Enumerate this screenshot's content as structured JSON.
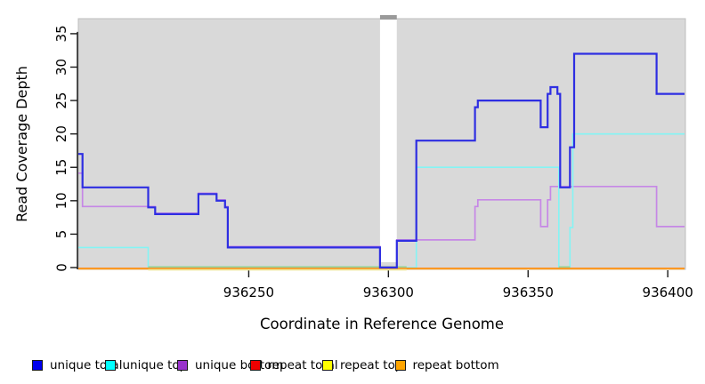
{
  "figure": {
    "bg": "#ffffff",
    "plot_bg": "#d9d9d9",
    "gap_band_color": "#ffffff",
    "gap_notch_color": "#9a9a9a",
    "axis_color": "#1a1a1a"
  },
  "chart_data": {
    "type": "line",
    "title": "",
    "xlabel": "Coordinate in Reference Genome",
    "ylabel": "Read Coverage Depth",
    "x_ticks": [
      936250,
      936300,
      936350,
      936400
    ],
    "x_tick_labels": [
      "936250",
      "936300",
      "936350",
      "936400"
    ],
    "y_ticks": [
      0,
      5,
      10,
      15,
      20,
      25,
      30,
      35
    ],
    "y_tick_labels": [
      "0",
      "5",
      "10",
      "15",
      "20",
      "25",
      "30",
      "35"
    ],
    "xlim": [
      936189,
      936406
    ],
    "ylim": [
      0,
      37.25
    ],
    "grid": false,
    "legend_position": "bottom",
    "gap_region": {
      "x_start": 936297,
      "x_end": 936303
    },
    "series": [
      {
        "name": "unique total",
        "line_color": "#2e2ee2",
        "draw": true,
        "offset_y": 0,
        "steps": [
          [
            936189,
            17
          ],
          [
            936190.5,
            12
          ],
          [
            936214,
            9
          ],
          [
            936216.5,
            8
          ],
          [
            936232,
            11
          ],
          [
            936238.5,
            10
          ],
          [
            936241.5,
            9
          ],
          [
            936242.5,
            3
          ],
          [
            936297,
            0
          ],
          [
            936303,
            4
          ],
          [
            936310,
            19
          ],
          [
            936331,
            24
          ],
          [
            936332,
            25
          ],
          [
            936354.5,
            21
          ],
          [
            936357,
            26
          ],
          [
            936358,
            27
          ],
          [
            936360.5,
            26
          ],
          [
            936361.5,
            12
          ],
          [
            936365,
            18
          ],
          [
            936366.5,
            32
          ],
          [
            936396,
            26
          ],
          [
            936406,
            26
          ]
        ]
      },
      {
        "name": "unique top",
        "line_color": "#84f4f4",
        "draw": true,
        "offset_y": 0,
        "steps": [
          [
            936189,
            3
          ],
          [
            936214,
            0
          ],
          [
            936310,
            15
          ],
          [
            936361,
            0
          ],
          [
            936365,
            6
          ],
          [
            936366,
            20
          ],
          [
            936406,
            20
          ]
        ]
      },
      {
        "name": "unique bottom",
        "line_color": "#c687e6",
        "draw": true,
        "offset_y": -1,
        "steps": [
          [
            936189,
            14
          ],
          [
            936190.5,
            9
          ],
          [
            936216.5,
            8
          ],
          [
            936232,
            11
          ],
          [
            936238.5,
            10
          ],
          [
            936241.5,
            9
          ],
          [
            936242.5,
            3
          ],
          [
            936297,
            0
          ],
          [
            936303,
            4
          ],
          [
            936331,
            9
          ],
          [
            936332,
            10
          ],
          [
            936354.5,
            6
          ],
          [
            936357,
            10
          ],
          [
            936358,
            12
          ],
          [
            936396,
            6
          ],
          [
            936406,
            6
          ]
        ]
      },
      {
        "name": "repeat total",
        "line_color": "#e00000",
        "draw": false,
        "offset_y": 0,
        "steps": [
          [
            936189,
            0
          ],
          [
            936406,
            0
          ]
        ]
      },
      {
        "name": "repeat top",
        "line_color": "#efe89c",
        "draw": false,
        "offset_y": 0,
        "steps": [
          [
            936189,
            0
          ],
          [
            936406,
            0
          ]
        ]
      },
      {
        "name": "repeat bottom",
        "line_color": "#ff9e1a",
        "draw": false,
        "offset_y": 0,
        "steps": [
          [
            936189,
            0
          ],
          [
            936406,
            0
          ]
        ]
      }
    ],
    "zero_line_segments": [
      {
        "name": "repeat-total-zero",
        "color": "#e00000",
        "from": 936189,
        "to": 936406,
        "dy": 1.0
      },
      {
        "name": "repeat-bottom-zero",
        "color": "#ff9e1a",
        "from": 936189,
        "to": 936406,
        "dy": 1.2
      },
      {
        "name": "repeat-top-zero",
        "color": "#efe89c",
        "from": 936214,
        "to": 936306.5,
        "dy": 2.6
      },
      {
        "name": "overlap-zero-left",
        "color": "#9cd49c",
        "from": 936214,
        "to": 936306.5,
        "dy": -0.8
      },
      {
        "name": "overlap-zero-right",
        "color": "#9cd49c",
        "from": 936361,
        "to": 936365,
        "dy": -0.8
      }
    ]
  },
  "legend": {
    "items": [
      {
        "label": "unique total",
        "swatch_color": "#0000ee"
      },
      {
        "label": "unique top",
        "swatch_color": "#00ffff"
      },
      {
        "label": "unique bottom",
        "swatch_color": "#9932cc"
      },
      {
        "label": "repeat total",
        "swatch_color": "#ee0000"
      },
      {
        "label": "repeat top",
        "swatch_color": "#ffff00"
      },
      {
        "label": "repeat bottom",
        "swatch_color": "#ffa500"
      }
    ]
  }
}
